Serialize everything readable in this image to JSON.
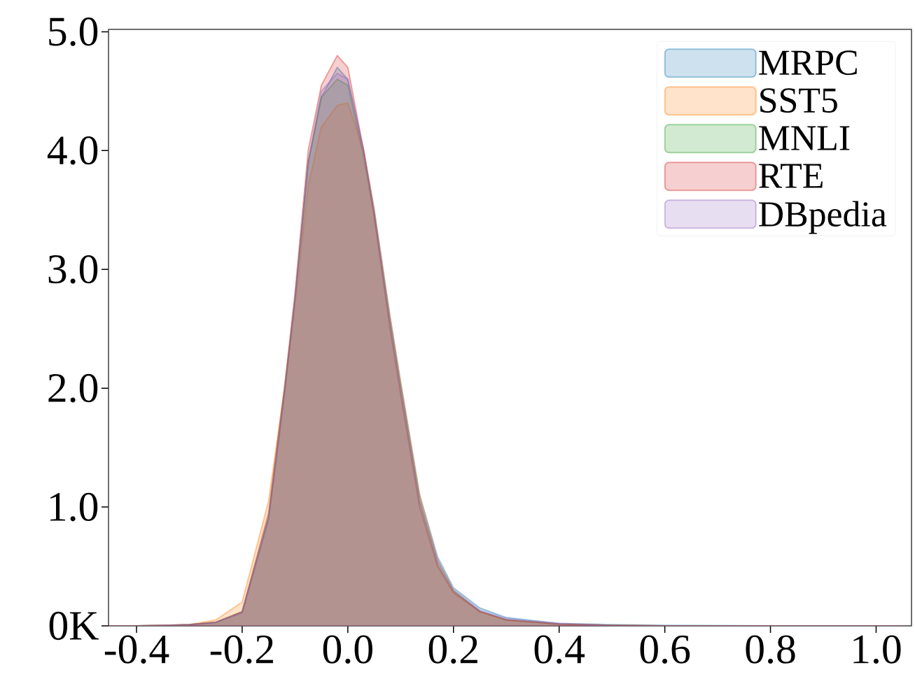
{
  "chart_data": {
    "type": "area",
    "x": [
      -0.45,
      -0.4,
      -0.3,
      -0.25,
      -0.2,
      -0.15,
      -0.12,
      -0.1,
      -0.075,
      -0.05,
      -0.02,
      0,
      0.03,
      0.05,
      0.08,
      0.1,
      0.136,
      0.17,
      0.2,
      0.25,
      0.3,
      0.4,
      0.5,
      0.6,
      0.8,
      1.0,
      1.05
    ],
    "series": [
      {
        "name": "MRPC",
        "color": "#1f77b4",
        "values": [
          0,
          0,
          0.01,
          0.03,
          0.11,
          0.9,
          1.95,
          2.75,
          3.9,
          4.45,
          4.7,
          4.6,
          4.0,
          3.5,
          2.6,
          2.05,
          1.1,
          0.58,
          0.32,
          0.15,
          0.07,
          0.02,
          0.01,
          0.005,
          0,
          0,
          0
        ]
      },
      {
        "name": "SST5",
        "color": "#ff7f0e",
        "values": [
          0,
          0,
          0.01,
          0.05,
          0.2,
          1.05,
          2.0,
          2.7,
          3.7,
          4.2,
          4.38,
          4.4,
          4.0,
          3.5,
          2.6,
          2.05,
          1.1,
          0.55,
          0.3,
          0.12,
          0.05,
          0.015,
          0.005,
          0,
          0,
          0,
          0
        ]
      },
      {
        "name": "MNLI",
        "color": "#2ca02c",
        "values": [
          0,
          0,
          0.01,
          0.03,
          0.12,
          0.92,
          1.98,
          2.75,
          3.9,
          4.45,
          4.6,
          4.55,
          3.95,
          3.45,
          2.55,
          2.0,
          1.05,
          0.52,
          0.29,
          0.12,
          0.05,
          0.015,
          0.005,
          0,
          0,
          0,
          0
        ]
      },
      {
        "name": "RTE",
        "color": "#d62728",
        "values": [
          0,
          0,
          0.01,
          0.03,
          0.12,
          0.95,
          2.0,
          2.8,
          4.0,
          4.55,
          4.8,
          4.7,
          4.0,
          3.45,
          2.5,
          1.95,
          1.0,
          0.5,
          0.28,
          0.12,
          0.05,
          0.015,
          0.005,
          0,
          0,
          0,
          0
        ]
      },
      {
        "name": "DBpedia",
        "color": "#9467bd",
        "values": [
          0,
          0,
          0.01,
          0.03,
          0.11,
          0.9,
          1.95,
          2.75,
          3.9,
          4.5,
          4.65,
          4.6,
          4.0,
          3.48,
          2.55,
          2.0,
          1.05,
          0.55,
          0.3,
          0.13,
          0.06,
          0.02,
          0.005,
          0,
          0,
          0,
          0
        ]
      }
    ],
    "xlim": [
      -0.453,
      1.067
    ],
    "ylim": [
      0,
      5.02
    ],
    "xticks": [
      {
        "value": -0.4,
        "label": "-0.4"
      },
      {
        "value": -0.2,
        "label": "-0.2"
      },
      {
        "value": 0,
        "label": "0.0"
      },
      {
        "value": 0.2,
        "label": "0.2"
      },
      {
        "value": 0.4,
        "label": "0.4"
      },
      {
        "value": 0.6,
        "label": "0.6"
      },
      {
        "value": 0.8,
        "label": "0.8"
      },
      {
        "value": 1.0,
        "label": "1.0"
      }
    ],
    "yticks": [
      {
        "value": 0,
        "label": "0K"
      },
      {
        "value": 1,
        "label": "1.0"
      },
      {
        "value": 2,
        "label": "2.0"
      },
      {
        "value": 3,
        "label": "3.0"
      },
      {
        "value": 4,
        "label": "4.0"
      },
      {
        "value": 5,
        "label": "5.0"
      }
    ],
    "legend": "top right",
    "grid": false
  }
}
